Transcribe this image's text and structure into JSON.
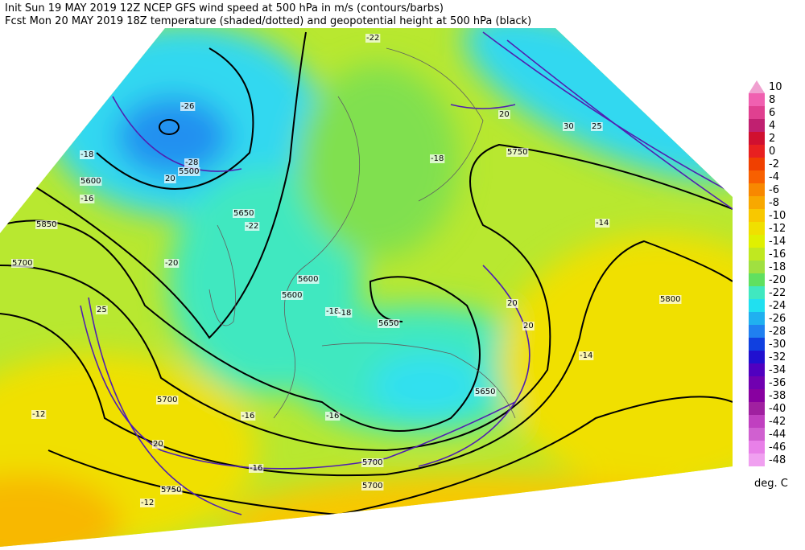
{
  "header": {
    "line1": "Init  Sun 19 MAY 2019 12Z  NCEP GFS wind speed at 500 hPa in m/s (contours/barbs)",
    "line2": "Fcst Mon 20 MAY 2019 18Z  temperature (shaded/dotted) and geopotential height at 500 hPa (black)"
  },
  "legend": {
    "unit": "deg. C",
    "items": [
      {
        "label": "10",
        "color": "#f0a0d0"
      },
      {
        "label": "8",
        "color": "#f060b0"
      },
      {
        "label": "6",
        "color": "#e04090"
      },
      {
        "label": "4",
        "color": "#c02070"
      },
      {
        "label": "2",
        "color": "#d01030"
      },
      {
        "label": "0",
        "color": "#e82020"
      },
      {
        "label": "-2",
        "color": "#f04000"
      },
      {
        "label": "-4",
        "color": "#f86000"
      },
      {
        "label": "-6",
        "color": "#f88800"
      },
      {
        "label": "-8",
        "color": "#f8a800"
      },
      {
        "label": "-10",
        "color": "#f8c800"
      },
      {
        "label": "-12",
        "color": "#f0e000"
      },
      {
        "label": "-14",
        "color": "#e0f000"
      },
      {
        "label": "-16",
        "color": "#c0e820"
      },
      {
        "label": "-18",
        "color": "#a0e040"
      },
      {
        "label": "-20",
        "color": "#60e060"
      },
      {
        "label": "-22",
        "color": "#40e8c0"
      },
      {
        "label": "-24",
        "color": "#20e0f0"
      },
      {
        "label": "-26",
        "color": "#20b0f0"
      },
      {
        "label": "-28",
        "color": "#2080f0"
      },
      {
        "label": "-30",
        "color": "#1040e0"
      },
      {
        "label": "-32",
        "color": "#2010d0"
      },
      {
        "label": "-34",
        "color": "#5000c0"
      },
      {
        "label": "-36",
        "color": "#7000b0"
      },
      {
        "label": "-38",
        "color": "#8800a0"
      },
      {
        "label": "-40",
        "color": "#a020a0"
      },
      {
        "label": "-42",
        "color": "#c040c0"
      },
      {
        "label": "-44",
        "color": "#d060d0"
      },
      {
        "label": "-46",
        "color": "#e880e8"
      },
      {
        "label": "-48",
        "color": "#f0a0f0"
      }
    ]
  },
  "map_labels": [
    "-22",
    "-26",
    "-28",
    "5500",
    "20",
    "-18",
    "5600",
    "-16",
    "5650",
    "-22",
    "5850",
    "5700",
    "-20",
    "5600",
    "5600",
    "-18",
    "5650",
    "-16",
    "5700",
    "-18",
    "5750",
    "-14",
    "5800",
    "20",
    "25",
    "30",
    "25",
    "20",
    "-12",
    "5650",
    "-16",
    "5700",
    "5750",
    "-12",
    "20",
    "-14",
    "5700",
    "-16",
    "-18",
    "20"
  ]
}
